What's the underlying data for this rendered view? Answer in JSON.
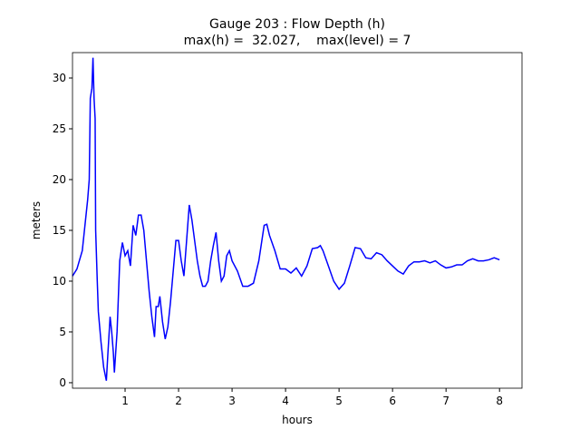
{
  "chart_data": {
    "type": "line",
    "title": [
      "Gauge 203 : Flow Depth (h)",
      "max(h) =  32.027,    max(level) = 7"
    ],
    "xlabel": "hours",
    "ylabel": "meters",
    "x": [
      0.017,
      0.1,
      0.2,
      0.25,
      0.3,
      0.33,
      0.35,
      0.38,
      0.4,
      0.42,
      0.44,
      0.45,
      0.48,
      0.5,
      0.55,
      0.6,
      0.65,
      0.68,
      0.72,
      0.75,
      0.78,
      0.8,
      0.85,
      0.9,
      0.95,
      1.0,
      1.05,
      1.1,
      1.15,
      1.2,
      1.25,
      1.3,
      1.35,
      1.4,
      1.45,
      1.5,
      1.55,
      1.58,
      1.62,
      1.65,
      1.7,
      1.75,
      1.8,
      1.85,
      1.9,
      1.95,
      2.0,
      2.05,
      2.1,
      2.15,
      2.2,
      2.25,
      2.3,
      2.35,
      2.4,
      2.45,
      2.5,
      2.55,
      2.6,
      2.65,
      2.7,
      2.75,
      2.8,
      2.85,
      2.9,
      2.95,
      3.0,
      3.1,
      3.2,
      3.3,
      3.4,
      3.5,
      3.6,
      3.65,
      3.7,
      3.8,
      3.9,
      4.0,
      4.1,
      4.2,
      4.3,
      4.4,
      4.5,
      4.6,
      4.65,
      4.7,
      4.8,
      4.9,
      5.0,
      5.1,
      5.2,
      5.3,
      5.4,
      5.5,
      5.6,
      5.7,
      5.8,
      5.9,
      6.0,
      6.1,
      6.2,
      6.3,
      6.4,
      6.5,
      6.6,
      6.7,
      6.8,
      6.9,
      7.0,
      7.1,
      7.2,
      7.3,
      7.4,
      7.5,
      7.6,
      7.7,
      7.8,
      7.9,
      8.0
    ],
    "series": [
      {
        "name": "h",
        "color": "#0000ff",
        "values": [
          10.5,
          11.2,
          13,
          15.5,
          18,
          20,
          28,
          29,
          32,
          28,
          26,
          15,
          10,
          7,
          4,
          1.5,
          0.2,
          3,
          6.5,
          5,
          3,
          1,
          5,
          12,
          13.8,
          12.5,
          13,
          11.5,
          15.5,
          14.5,
          16.5,
          16.5,
          15,
          12,
          9,
          6.5,
          4.5,
          7.5,
          7.5,
          8.5,
          6,
          4.3,
          5.5,
          8,
          11,
          14,
          14,
          12,
          10.5,
          14,
          17.5,
          16,
          14,
          12,
          10.5,
          9.5,
          9.5,
          10,
          12,
          13.5,
          14.8,
          12,
          10,
          10.5,
          12.5,
          13,
          12,
          11,
          9.5,
          9.5,
          9.8,
          12,
          15.5,
          15.6,
          14.5,
          13,
          11.2,
          11.2,
          10.8,
          11.3,
          10.5,
          11.5,
          13.2,
          13.3,
          13.5,
          13,
          11.5,
          10,
          9.2,
          9.8,
          11.5,
          13.3,
          13.2,
          12.3,
          12.2,
          12.8,
          12.6,
          12,
          11.5,
          11,
          10.7,
          11.5,
          11.9,
          11.9,
          12,
          11.8,
          12,
          11.6,
          11.3,
          11.4,
          11.6,
          11.6,
          12,
          12.2,
          12,
          12,
          12.1,
          12.3,
          12.1
        ]
      }
    ],
    "xlim": [
      0.017,
      8.42
    ],
    "ylim": [
      -0.54,
      32.5
    ],
    "xticks": [
      1,
      2,
      3,
      4,
      5,
      6,
      7,
      8
    ],
    "yticks": [
      0,
      5,
      10,
      15,
      20,
      25,
      30
    ]
  }
}
